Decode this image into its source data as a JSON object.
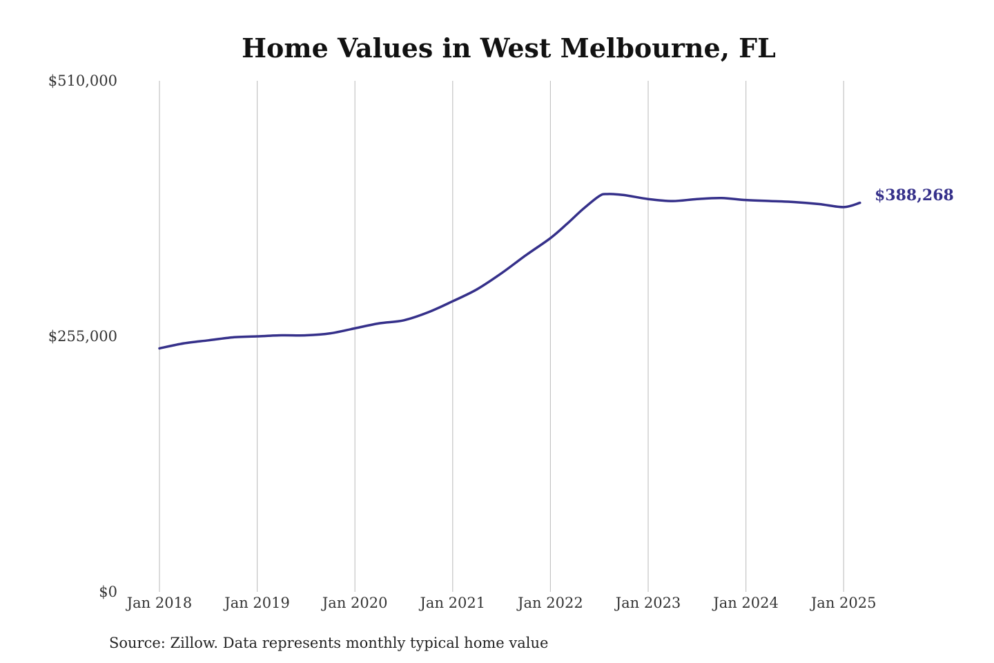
{
  "colors": {
    "series": "#35308a",
    "end_label": "#35308a",
    "grid": "#c4c4c4",
    "text": "#333333"
  },
  "chart_data": {
    "type": "line",
    "title": "Home Values in West Melbourne, FL",
    "xlabel": "",
    "ylabel": "",
    "ylim": [
      0,
      510000
    ],
    "yticks": [
      {
        "value": 0,
        "label": "$0"
      },
      {
        "value": 255000,
        "label": "$255,000"
      },
      {
        "value": 510000,
        "label": "$510,000"
      }
    ],
    "xticks": [
      "Jan 2018",
      "Jan 2019",
      "Jan 2020",
      "Jan 2021",
      "Jan 2022",
      "Jan 2023",
      "Jan 2024",
      "Jan 2025"
    ],
    "grid": "vertical",
    "series": [
      {
        "x": [
          "2018-01",
          "2018-04",
          "2018-07",
          "2018-10",
          "2019-01",
          "2019-04",
          "2019-07",
          "2019-10",
          "2020-01",
          "2020-04",
          "2020-07",
          "2020-10",
          "2021-01",
          "2021-04",
          "2021-07",
          "2021-10",
          "2022-01",
          "2022-03",
          "2022-05",
          "2022-07",
          "2022-08",
          "2022-10",
          "2023-01",
          "2023-04",
          "2023-07",
          "2023-10",
          "2024-01",
          "2024-04",
          "2024-07",
          "2024-10",
          "2025-01",
          "2025-03"
        ],
        "values": [
          243000,
          248000,
          251000,
          254000,
          255000,
          256000,
          256000,
          258000,
          263000,
          268000,
          271000,
          279000,
          290000,
          302000,
          318000,
          336000,
          353000,
          367000,
          382000,
          395000,
          397000,
          396000,
          392000,
          390000,
          392000,
          393000,
          391000,
          390000,
          389000,
          387000,
          384000,
          388268
        ]
      }
    ],
    "end_label": "$388,268",
    "source": "Source: Zillow. Data represents monthly typical home value"
  }
}
